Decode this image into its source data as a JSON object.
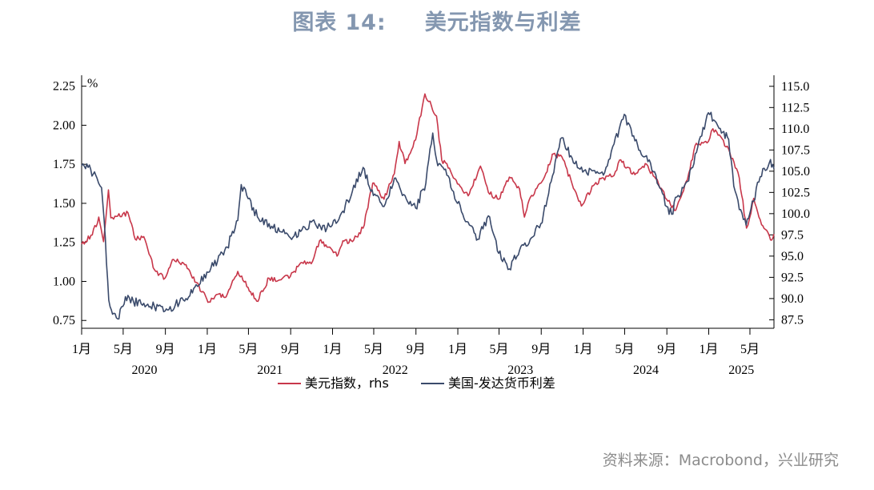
{
  "header": {
    "prefix": "图表",
    "number": "14:",
    "title": "美元指数与利差"
  },
  "source_text": "资料来源：Macrobond，兴业研究",
  "colors": {
    "dxy": "#c8374a",
    "spread": "#3a4a6b",
    "title": "#8497b0"
  },
  "chart_data": {
    "type": "line",
    "title": "美元指数与利差",
    "left_axis": {
      "unit": "%",
      "range": [
        0.7,
        2.32
      ],
      "ticks": [
        "0.75",
        "1.00",
        "1.25",
        "1.50",
        "1.75",
        "2.00",
        "2.25"
      ]
    },
    "right_axis": {
      "range": [
        86.5,
        116.3
      ],
      "ticks": [
        "87.5",
        "90.0",
        "92.5",
        "95.0",
        "97.5",
        "100.0",
        "102.5",
        "105.0",
        "107.5",
        "110.0",
        "112.5",
        "115.0"
      ]
    },
    "x_axis": {
      "range": [
        "2020-01-01",
        "2025-07-10"
      ],
      "month_ticks": [
        "1月",
        "5月",
        "9月",
        "1月",
        "5月",
        "9月",
        "1月",
        "5月",
        "9月",
        "1月",
        "5月",
        "9月",
        "1月",
        "5月",
        "9月",
        "1月",
        "5月"
      ],
      "years": [
        "2020",
        "2021",
        "2022",
        "2023",
        "2024",
        "2025"
      ]
    },
    "legend": [
      "美元指数，rhs",
      "美国-发达货币利差"
    ],
    "series": [
      {
        "name": "美元指数，rhs",
        "axis": "right",
        "points": [
          [
            "2020-01-01",
            96.4
          ],
          [
            "2020-02-01",
            97.5
          ],
          [
            "2020-02-20",
            99.6
          ],
          [
            "2020-03-05",
            96.7
          ],
          [
            "2020-03-19",
            102.8
          ],
          [
            "2020-03-26",
            99.5
          ],
          [
            "2020-04-15",
            99.7
          ],
          [
            "2020-05-15",
            100.1
          ],
          [
            "2020-06-05",
            97.0
          ],
          [
            "2020-06-30",
            97.3
          ],
          [
            "2020-07-31",
            93.4
          ],
          [
            "2020-08-31",
            92.4
          ],
          [
            "2020-09-25",
            94.6
          ],
          [
            "2020-10-31",
            94.0
          ],
          [
            "2020-11-30",
            91.9
          ],
          [
            "2020-12-31",
            89.9
          ],
          [
            "2021-01-06",
            89.6
          ],
          [
            "2021-01-31",
            90.5
          ],
          [
            "2021-02-25",
            90.2
          ],
          [
            "2021-03-31",
            93.2
          ],
          [
            "2021-04-30",
            91.3
          ],
          [
            "2021-05-25",
            89.7
          ],
          [
            "2021-06-30",
            92.4
          ],
          [
            "2021-07-31",
            92.2
          ],
          [
            "2021-08-31",
            92.6
          ],
          [
            "2021-09-30",
            94.2
          ],
          [
            "2021-10-31",
            94.1
          ],
          [
            "2021-11-24",
            96.8
          ],
          [
            "2021-12-31",
            95.7
          ],
          [
            "2022-01-14",
            95.0
          ],
          [
            "2022-01-31",
            96.8
          ],
          [
            "2022-02-28",
            96.7
          ],
          [
            "2022-03-31",
            98.3
          ],
          [
            "2022-04-28",
            103.6
          ],
          [
            "2022-05-31",
            101.7
          ],
          [
            "2022-06-30",
            104.7
          ],
          [
            "2022-07-14",
            108.5
          ],
          [
            "2022-07-31",
            105.9
          ],
          [
            "2022-08-31",
            108.7
          ],
          [
            "2022-09-27",
            114.1
          ],
          [
            "2022-10-31",
            111.5
          ],
          [
            "2022-11-15",
            106.3
          ],
          [
            "2022-11-30",
            105.9
          ],
          [
            "2022-12-31",
            103.5
          ],
          [
            "2023-01-31",
            102.1
          ],
          [
            "2023-03-08",
            105.6
          ],
          [
            "2023-03-31",
            102.5
          ],
          [
            "2023-04-30",
            101.7
          ],
          [
            "2023-05-31",
            104.3
          ],
          [
            "2023-06-30",
            102.9
          ],
          [
            "2023-07-14",
            99.6
          ],
          [
            "2023-07-31",
            101.9
          ],
          [
            "2023-08-31",
            103.6
          ],
          [
            "2023-09-29",
            106.2
          ],
          [
            "2023-10-03",
            107.0
          ],
          [
            "2023-10-31",
            106.7
          ],
          [
            "2023-11-30",
            103.5
          ],
          [
            "2023-12-27",
            100.9
          ],
          [
            "2024-01-31",
            103.3
          ],
          [
            "2024-02-29",
            104.2
          ],
          [
            "2024-03-31",
            104.5
          ],
          [
            "2024-04-16",
            106.3
          ],
          [
            "2024-05-31",
            104.6
          ],
          [
            "2024-06-30",
            105.9
          ],
          [
            "2024-07-31",
            104.1
          ],
          [
            "2024-08-31",
            101.7
          ],
          [
            "2024-09-27",
            100.4
          ],
          [
            "2024-10-31",
            104.0
          ],
          [
            "2024-11-22",
            108.0
          ],
          [
            "2024-12-31",
            108.5
          ],
          [
            "2025-01-13",
            110.0
          ],
          [
            "2025-02-28",
            107.6
          ],
          [
            "2025-03-31",
            104.2
          ],
          [
            "2025-04-21",
            98.3
          ],
          [
            "2025-04-30",
            99.5
          ],
          [
            "2025-05-12",
            101.8
          ],
          [
            "2025-05-31",
            99.3
          ],
          [
            "2025-06-30",
            96.9
          ],
          [
            "2025-07-10",
            97.6
          ]
        ]
      },
      {
        "name": "美国-发达货币利差",
        "axis": "left",
        "points": [
          [
            "2020-01-01",
            1.74
          ],
          [
            "2020-01-20",
            1.73
          ],
          [
            "2020-02-15",
            1.66
          ],
          [
            "2020-02-28",
            1.6
          ],
          [
            "2020-03-10",
            1.28
          ],
          [
            "2020-03-20",
            0.88
          ],
          [
            "2020-03-31",
            0.79
          ],
          [
            "2020-04-15",
            0.76
          ],
          [
            "2020-04-30",
            0.84
          ],
          [
            "2020-05-15",
            0.91
          ],
          [
            "2020-05-31",
            0.87
          ],
          [
            "2020-06-30",
            0.86
          ],
          [
            "2020-07-31",
            0.84
          ],
          [
            "2020-08-31",
            0.81
          ],
          [
            "2020-09-30",
            0.85
          ],
          [
            "2020-10-31",
            0.89
          ],
          [
            "2020-11-30",
            0.98
          ],
          [
            "2020-12-31",
            1.06
          ],
          [
            "2021-01-31",
            1.13
          ],
          [
            "2021-02-28",
            1.22
          ],
          [
            "2021-03-31",
            1.39
          ],
          [
            "2021-04-10",
            1.62
          ],
          [
            "2021-04-30",
            1.53
          ],
          [
            "2021-05-31",
            1.4
          ],
          [
            "2021-06-30",
            1.37
          ],
          [
            "2021-07-31",
            1.32
          ],
          [
            "2021-08-31",
            1.28
          ],
          [
            "2021-09-30",
            1.32
          ],
          [
            "2021-10-31",
            1.38
          ],
          [
            "2021-11-30",
            1.33
          ],
          [
            "2021-12-31",
            1.36
          ],
          [
            "2022-01-31",
            1.45
          ],
          [
            "2022-02-28",
            1.58
          ],
          [
            "2022-03-31",
            1.73
          ],
          [
            "2022-04-30",
            1.55
          ],
          [
            "2022-05-31",
            1.48
          ],
          [
            "2022-06-30",
            1.66
          ],
          [
            "2022-07-31",
            1.55
          ],
          [
            "2022-08-31",
            1.47
          ],
          [
            "2022-09-30",
            1.63
          ],
          [
            "2022-10-20",
            1.95
          ],
          [
            "2022-10-31",
            1.78
          ],
          [
            "2022-11-30",
            1.68
          ],
          [
            "2022-12-31",
            1.5
          ],
          [
            "2023-01-31",
            1.38
          ],
          [
            "2023-02-28",
            1.27
          ],
          [
            "2023-03-31",
            1.42
          ],
          [
            "2023-04-30",
            1.18
          ],
          [
            "2023-05-31",
            1.08
          ],
          [
            "2023-06-30",
            1.2
          ],
          [
            "2023-07-31",
            1.27
          ],
          [
            "2023-08-31",
            1.37
          ],
          [
            "2023-09-30",
            1.64
          ],
          [
            "2023-10-31",
            1.92
          ],
          [
            "2023-11-30",
            1.79
          ],
          [
            "2023-12-31",
            1.7
          ],
          [
            "2024-01-31",
            1.71
          ],
          [
            "2024-02-29",
            1.68
          ],
          [
            "2024-03-31",
            1.88
          ],
          [
            "2024-04-30",
            2.07
          ],
          [
            "2024-05-31",
            1.9
          ],
          [
            "2024-06-30",
            1.8
          ],
          [
            "2024-07-31",
            1.68
          ],
          [
            "2024-08-31",
            1.48
          ],
          [
            "2024-09-15",
            1.43
          ],
          [
            "2024-09-30",
            1.54
          ],
          [
            "2024-10-31",
            1.64
          ],
          [
            "2024-11-30",
            1.86
          ],
          [
            "2024-12-31",
            2.08
          ],
          [
            "2025-01-31",
            1.98
          ],
          [
            "2025-02-28",
            1.91
          ],
          [
            "2025-03-15",
            1.61
          ],
          [
            "2025-03-31",
            1.46
          ],
          [
            "2025-04-20",
            1.36
          ],
          [
            "2025-04-30",
            1.43
          ],
          [
            "2025-05-31",
            1.67
          ],
          [
            "2025-06-30",
            1.78
          ],
          [
            "2025-07-10",
            1.72
          ]
        ]
      }
    ]
  }
}
